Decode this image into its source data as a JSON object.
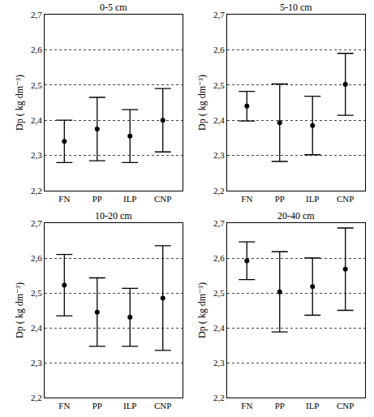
{
  "chart_data": [
    {
      "type": "scatter",
      "title": "0-5 cm",
      "ylabel": "Dp ( kg dm⁻³)",
      "categories": [
        "FN",
        "PP",
        "ILP",
        "CNP"
      ],
      "values": [
        2.34,
        2.375,
        2.355,
        2.4
      ],
      "error": [
        0.06,
        0.09,
        0.075,
        0.09
      ],
      "color": "#000000",
      "marker": "circle",
      "grid": true,
      "ylim": [
        2.2,
        2.7
      ],
      "yticks": [
        {
          "value": 2.2,
          "label": "2,2"
        },
        {
          "value": 2.3,
          "label": "2,3"
        },
        {
          "value": 2.4,
          "label": "2,4"
        },
        {
          "value": 2.5,
          "label": "2,5"
        },
        {
          "value": 2.6,
          "label": "2,6"
        },
        {
          "value": 2.7,
          "label": "2,7"
        }
      ]
    },
    {
      "type": "scatter",
      "title": "5-10 cm",
      "ylabel": "Dp ( kg dm⁻³)",
      "categories": [
        "FN",
        "PP",
        "ILP",
        "CNP"
      ],
      "values": [
        2.44,
        2.393,
        2.385,
        2.502
      ],
      "error": [
        0.042,
        0.11,
        0.083,
        0.088
      ],
      "color": "#000000",
      "marker": "circle",
      "grid": true,
      "ylim": [
        2.2,
        2.7
      ],
      "yticks": [
        {
          "value": 2.2,
          "label": "2,2"
        },
        {
          "value": 2.3,
          "label": "2,3"
        },
        {
          "value": 2.4,
          "label": "2,4"
        },
        {
          "value": 2.5,
          "label": "2,5"
        },
        {
          "value": 2.6,
          "label": "2,6"
        },
        {
          "value": 2.7,
          "label": "2,7"
        }
      ]
    },
    {
      "type": "scatter",
      "title": "10-20 cm",
      "ylabel": "Dp ( kg dm⁻³)",
      "categories": [
        "FN",
        "PP",
        "ILP",
        "CNP"
      ],
      "values": [
        2.522,
        2.445,
        2.43,
        2.485
      ],
      "error": [
        0.088,
        0.098,
        0.083,
        0.15
      ],
      "color": "#000000",
      "marker": "circle",
      "grid": true,
      "ylim": [
        2.2,
        2.7
      ],
      "yticks": [
        {
          "value": 2.2,
          "label": "2,2"
        },
        {
          "value": 2.3,
          "label": "2,3"
        },
        {
          "value": 2.4,
          "label": "2,4"
        },
        {
          "value": 2.5,
          "label": "2,5"
        },
        {
          "value": 2.6,
          "label": "2,6"
        },
        {
          "value": 2.7,
          "label": "2,7"
        }
      ]
    },
    {
      "type": "scatter",
      "title": "20-40 cm",
      "ylabel": "Dp ( kg dm⁻³)",
      "categories": [
        "FN",
        "PP",
        "ILP",
        "CNP"
      ],
      "values": [
        2.592,
        2.503,
        2.518,
        2.568
      ],
      "error": [
        0.054,
        0.115,
        0.082,
        0.118
      ],
      "color": "#000000",
      "marker": "circle",
      "grid": true,
      "ylim": [
        2.2,
        2.7
      ],
      "yticks": [
        {
          "value": 2.2,
          "label": "2,2"
        },
        {
          "value": 2.3,
          "label": "2,3"
        },
        {
          "value": 2.4,
          "label": "2,4"
        },
        {
          "value": 2.5,
          "label": "2,5"
        },
        {
          "value": 2.6,
          "label": "2,6"
        },
        {
          "value": 2.7,
          "label": "2,7"
        }
      ]
    }
  ]
}
